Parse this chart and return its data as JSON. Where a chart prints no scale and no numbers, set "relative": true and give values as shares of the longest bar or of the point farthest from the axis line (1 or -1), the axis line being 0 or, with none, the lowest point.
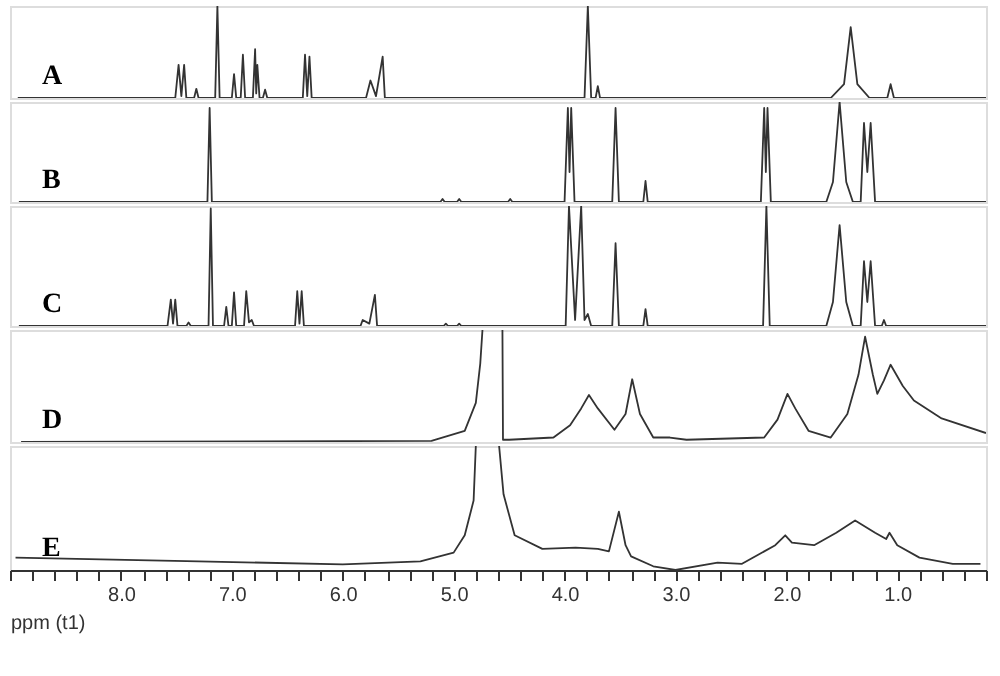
{
  "chart_data": [
    {
      "type": "line",
      "relative": true,
      "xlim": [
        9.0,
        0.2
      ],
      "tick_labels": false,
      "series": [
        {
          "name": "A",
          "color": "#333333",
          "x": [
            8.93,
            7.51,
            7.48,
            7.455,
            7.43,
            7.41,
            7.34,
            7.32,
            7.3,
            7.15,
            7.13,
            7.11,
            7.0,
            6.98,
            6.96,
            6.92,
            6.9,
            6.88,
            6.81,
            6.79,
            6.78,
            6.77,
            6.75,
            6.72,
            6.7,
            6.68,
            6.36,
            6.34,
            6.32,
            6.3,
            6.28,
            5.79,
            5.75,
            5.7,
            5.64,
            5.62,
            3.82,
            3.79,
            3.76,
            3.72,
            3.7,
            3.68,
            1.6,
            1.48,
            1.42,
            1.36,
            1.25,
            1.09,
            1.06,
            1.03,
            0.2
          ],
          "values": [
            0,
            0,
            0.36,
            0.02,
            0.36,
            0,
            0,
            0.1,
            0,
            0,
            1.0,
            0,
            0,
            0.26,
            0,
            0,
            0.47,
            0,
            0,
            0.53,
            0.05,
            0.36,
            0,
            0,
            0.09,
            0,
            0,
            0.47,
            0.02,
            0.45,
            0,
            0,
            0.19,
            0.02,
            0.45,
            0,
            0,
            1.0,
            0,
            0,
            0.13,
            0,
            0,
            0.15,
            0.77,
            0.15,
            0,
            0,
            0.15,
            0,
            0
          ]
        }
      ]
    },
    {
      "type": "line",
      "relative": true,
      "xlim": [
        9.0,
        0.2
      ],
      "tick_labels": false,
      "series": [
        {
          "name": "B",
          "color": "#333333",
          "x": [
            8.92,
            7.22,
            7.2,
            7.18,
            5.12,
            5.1,
            5.08,
            4.97,
            4.95,
            4.93,
            4.51,
            4.49,
            4.47,
            4.0,
            3.97,
            3.955,
            3.94,
            3.91,
            3.57,
            3.54,
            3.51,
            3.29,
            3.27,
            3.25,
            2.23,
            2.2,
            2.185,
            2.17,
            2.14,
            1.64,
            1.58,
            1.52,
            1.46,
            1.4,
            1.33,
            1.3,
            1.27,
            1.24,
            1.2,
            0.2
          ],
          "values": [
            0,
            0,
            0.94,
            0,
            0,
            0.03,
            0,
            0,
            0.03,
            0,
            0,
            0.03,
            0,
            0,
            0.94,
            0.3,
            0.94,
            0,
            0,
            0.94,
            0,
            0,
            0.21,
            0,
            0,
            0.94,
            0.3,
            0.94,
            0,
            0,
            0.2,
            1.0,
            0.2,
            0,
            0,
            0.79,
            0.3,
            0.79,
            0,
            0
          ]
        }
      ]
    },
    {
      "type": "line",
      "relative": true,
      "xlim": [
        9.0,
        0.2
      ],
      "tick_labels": false,
      "series": [
        {
          "name": "C",
          "color": "#333333",
          "x": [
            8.92,
            7.58,
            7.55,
            7.53,
            7.51,
            7.49,
            7.41,
            7.39,
            7.37,
            7.21,
            7.19,
            7.17,
            7.07,
            7.05,
            7.03,
            7.0,
            6.98,
            6.96,
            6.89,
            6.87,
            6.845,
            6.82,
            6.8,
            6.43,
            6.41,
            6.39,
            6.37,
            6.35,
            5.84,
            5.82,
            5.76,
            5.71,
            5.69,
            5.09,
            5.07,
            5.05,
            4.97,
            4.95,
            4.93,
            3.99,
            3.96,
            3.905,
            3.85,
            3.82,
            3.79,
            3.76,
            3.57,
            3.54,
            3.51,
            3.29,
            3.27,
            3.25,
            2.21,
            2.18,
            2.15,
            1.64,
            1.58,
            1.52,
            1.46,
            1.4,
            1.33,
            1.3,
            1.27,
            1.24,
            1.2,
            1.14,
            1.12,
            1.1,
            0.2
          ],
          "values": [
            0,
            0,
            0.22,
            0.02,
            0.22,
            0,
            0,
            0.03,
            0,
            0,
            0.98,
            0,
            0,
            0.16,
            0,
            0,
            0.28,
            0,
            0,
            0.29,
            0.03,
            0.05,
            0,
            0,
            0.29,
            0.02,
            0.29,
            0,
            0,
            0.05,
            0.02,
            0.26,
            0,
            0,
            0.02,
            0,
            0,
            0.02,
            0,
            0,
            1.0,
            0.05,
            1.0,
            0.05,
            0.1,
            0,
            0,
            0.69,
            0,
            0,
            0.14,
            0,
            0,
            1.0,
            0,
            0,
            0.2,
            0.84,
            0.2,
            0,
            0,
            0.54,
            0.2,
            0.54,
            0,
            0,
            0.05,
            0,
            0
          ]
        }
      ]
    },
    {
      "type": "line",
      "relative": true,
      "xlim": [
        9.0,
        0.2
      ],
      "tick_labels": false,
      "series": [
        {
          "name": "D",
          "color": "#333333",
          "x": [
            8.9,
            5.2,
            4.9,
            4.8,
            4.76,
            4.74,
            4.65,
            4.56,
            4.555,
            4.5,
            4.1,
            3.95,
            3.85,
            3.78,
            3.7,
            3.55,
            3.45,
            3.39,
            3.32,
            3.2,
            3.05,
            2.9,
            2.2,
            2.08,
            1.99,
            1.92,
            1.8,
            1.6,
            1.45,
            1.35,
            1.29,
            1.22,
            1.18,
            1.12,
            1.06,
            0.95,
            0.85,
            0.6,
            0.2
          ],
          "values": [
            0,
            0.01,
            0.1,
            0.35,
            0.7,
            1.0,
            null,
            1.0,
            0.02,
            0.02,
            0.04,
            0.15,
            0.3,
            0.42,
            0.3,
            0.11,
            0.25,
            0.56,
            0.25,
            0.04,
            0.04,
            0.02,
            0.04,
            0.2,
            0.43,
            0.3,
            0.1,
            0.04,
            0.25,
            0.6,
            0.94,
            0.6,
            0.43,
            0.55,
            0.69,
            0.5,
            0.37,
            0.21,
            0.08
          ]
        }
      ]
    },
    {
      "type": "line",
      "relative": true,
      "xlim": [
        9.0,
        0.2
      ],
      "tick_labels": "x",
      "xlabel": "ppm (t1)",
      "xticks": [
        {
          "value": 9.0,
          "label": null
        },
        {
          "value": 8.8,
          "label": null
        },
        {
          "value": 8.6,
          "label": null
        },
        {
          "value": 8.4,
          "label": null
        },
        {
          "value": 8.2,
          "label": null
        },
        {
          "value": 8.0,
          "label": "8.0"
        },
        {
          "value": 7.8,
          "label": null
        },
        {
          "value": 7.6,
          "label": null
        },
        {
          "value": 7.4,
          "label": null
        },
        {
          "value": 7.2,
          "label": null
        },
        {
          "value": 7.0,
          "label": "7.0"
        },
        {
          "value": 6.8,
          "label": null
        },
        {
          "value": 6.6,
          "label": null
        },
        {
          "value": 6.4,
          "label": null
        },
        {
          "value": 6.2,
          "label": null
        },
        {
          "value": 6.0,
          "label": "6.0"
        },
        {
          "value": 5.8,
          "label": null
        },
        {
          "value": 5.6,
          "label": null
        },
        {
          "value": 5.4,
          "label": null
        },
        {
          "value": 5.2,
          "label": null
        },
        {
          "value": 5.0,
          "label": "5.0"
        },
        {
          "value": 4.8,
          "label": null
        },
        {
          "value": 4.6,
          "label": null
        },
        {
          "value": 4.4,
          "label": null
        },
        {
          "value": 4.2,
          "label": null
        },
        {
          "value": 4.0,
          "label": "4.0"
        },
        {
          "value": 3.8,
          "label": null
        },
        {
          "value": 3.6,
          "label": null
        },
        {
          "value": 3.4,
          "label": null
        },
        {
          "value": 3.2,
          "label": null
        },
        {
          "value": 3.0,
          "label": "3.0"
        },
        {
          "value": 2.8,
          "label": null
        },
        {
          "value": 2.6,
          "label": null
        },
        {
          "value": 2.4,
          "label": null
        },
        {
          "value": 2.2,
          "label": null
        },
        {
          "value": 2.0,
          "label": "2.0"
        },
        {
          "value": 1.8,
          "label": null
        },
        {
          "value": 1.6,
          "label": null
        },
        {
          "value": 1.4,
          "label": null
        },
        {
          "value": 1.2,
          "label": null
        },
        {
          "value": 1.0,
          "label": "1.0"
        },
        {
          "value": 0.8,
          "label": null
        },
        {
          "value": 0.6,
          "label": null
        },
        {
          "value": 0.4,
          "label": null
        },
        {
          "value": 0.2,
          "label": null
        }
      ],
      "series": [
        {
          "name": "E",
          "color": "#333333",
          "x": [
            8.95,
            7.3,
            6.0,
            5.3,
            5.0,
            4.9,
            4.82,
            4.8,
            4.7,
            4.59,
            4.55,
            4.45,
            4.2,
            3.9,
            3.7,
            3.6,
            3.51,
            3.45,
            3.4,
            3.2,
            3.0,
            2.62,
            2.4,
            2.1,
            2.01,
            1.95,
            1.75,
            1.55,
            1.38,
            1.2,
            1.1,
            1.07,
            1.0,
            0.8,
            0.5,
            0.25
          ],
          "values": [
            0.1,
            0.07,
            0.045,
            0.07,
            0.14,
            0.28,
            0.56,
            1.0,
            null,
            1.0,
            0.61,
            0.28,
            0.17,
            0.18,
            0.17,
            0.15,
            0.47,
            0.2,
            0.11,
            0.03,
            0,
            0.06,
            0.05,
            0.2,
            0.28,
            0.22,
            0.2,
            0.3,
            0.4,
            0.3,
            0.25,
            0.3,
            0.2,
            0.1,
            0.05,
            0.05
          ]
        }
      ]
    }
  ]
}
